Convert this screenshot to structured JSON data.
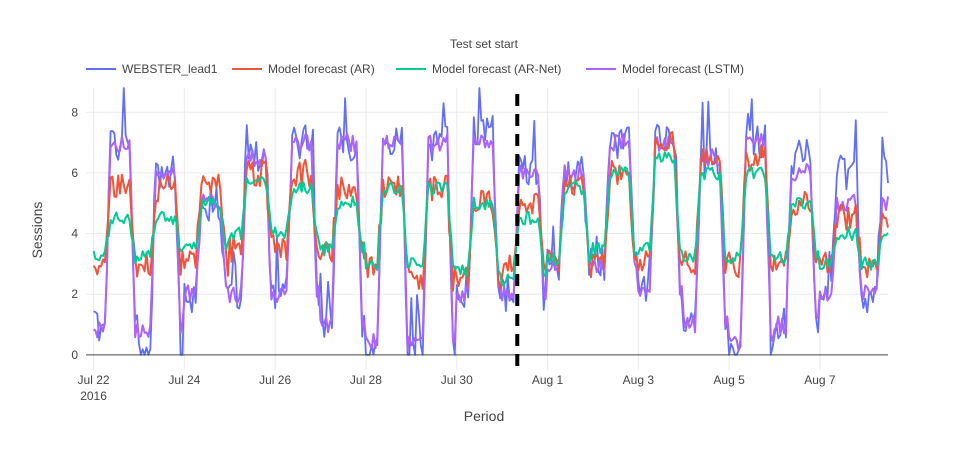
{
  "chart_data": {
    "type": "line",
    "xlabel": "Period",
    "ylabel": "Sessions",
    "x_start": "2016-07-22",
    "x_end": "2016-08-08",
    "xlim": [
      "2016-07-21T20:00",
      "2016-08-08T12:00"
    ],
    "ylim": [
      -0.5,
      8.8
    ],
    "x_ticks": [
      {
        "date": "2016-07-22",
        "label": "Jul 22",
        "sublabel": "2016"
      },
      {
        "date": "2016-07-24",
        "label": "Jul 24"
      },
      {
        "date": "2016-07-26",
        "label": "Jul 26"
      },
      {
        "date": "2016-07-28",
        "label": "Jul 28"
      },
      {
        "date": "2016-07-30",
        "label": "Jul 30"
      },
      {
        "date": "2016-08-01",
        "label": "Aug 1"
      },
      {
        "date": "2016-08-03",
        "label": "Aug 3"
      },
      {
        "date": "2016-08-05",
        "label": "Aug 5"
      },
      {
        "date": "2016-08-07",
        "label": "Aug 7"
      }
    ],
    "y_ticks": [
      0,
      2,
      4,
      6,
      8
    ],
    "grid": true,
    "legend_position": "top",
    "annotation": {
      "text": "Test set start",
      "date": "2016-07-31T08:00",
      "style": "dashed black vertical line"
    },
    "sampling": "hourly (48 points per day shown as daily profile)",
    "series": [
      {
        "name": "WEBSTER_lead1",
        "color": "#636efa",
        "daily_high": [
          7.0,
          6.0,
          5.0,
          6.5,
          7.0,
          7.0,
          7.0,
          7.0,
          7.5,
          6.0,
          6.0,
          7.0,
          7.0,
          6.5,
          7.0,
          6.5,
          6.0
        ],
        "daily_low": [
          1.0,
          0.0,
          2.0,
          2.0,
          2.0,
          1.0,
          0.0,
          0.0,
          2.0,
          2.0,
          3.0,
          3.0,
          2.0,
          1.0,
          0.0,
          1.0,
          2.0
        ]
      },
      {
        "name": "Model forecast (AR)",
        "color": "#ef553b",
        "daily_high": [
          5.5,
          5.5,
          5.5,
          6.0,
          6.0,
          5.5,
          5.5,
          5.5,
          5.0,
          5.0,
          5.5,
          6.0,
          7.0,
          6.5,
          6.5,
          5.0,
          4.5
        ],
        "daily_low": [
          3.0,
          3.0,
          3.0,
          3.5,
          3.5,
          3.5,
          3.0,
          2.5,
          2.5,
          3.0,
          3.0,
          3.0,
          3.0,
          3.0,
          3.0,
          3.0,
          3.0
        ]
      },
      {
        "name": "Model forecast (AR-Net)",
        "color": "#00cc96",
        "daily_high": [
          4.5,
          4.5,
          5.0,
          5.8,
          5.5,
          5.0,
          5.5,
          5.5,
          5.0,
          4.5,
          5.5,
          6.0,
          6.5,
          6.0,
          6.0,
          5.0,
          4.0
        ],
        "daily_low": [
          3.2,
          3.3,
          3.5,
          4.0,
          4.0,
          3.5,
          3.0,
          3.0,
          2.8,
          2.5,
          3.2,
          3.5,
          3.5,
          3.2,
          3.2,
          3.2,
          3.0
        ]
      },
      {
        "name": "Model forecast (LSTM)",
        "color": "#ab63fa",
        "daily_high": [
          7.0,
          6.0,
          5.0,
          6.5,
          7.0,
          7.0,
          7.0,
          7.0,
          7.0,
          6.0,
          6.0,
          7.0,
          7.0,
          6.5,
          7.0,
          6.0,
          5.0
        ],
        "daily_low": [
          0.8,
          0.8,
          2.0,
          2.0,
          2.0,
          1.0,
          0.4,
          0.4,
          2.0,
          2.0,
          3.0,
          3.0,
          2.0,
          1.0,
          0.4,
          1.0,
          2.0
        ]
      }
    ]
  }
}
